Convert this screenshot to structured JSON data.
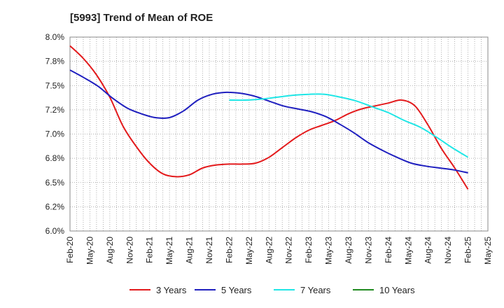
{
  "chart_data": {
    "type": "line",
    "title": "[5993]  Trend of Mean of ROE",
    "xlabel": "",
    "ylabel": "",
    "ylim": [
      6.0,
      8.0
    ],
    "y_ticks": [
      "6.0%",
      "6.2%",
      "6.5%",
      "6.8%",
      "7.0%",
      "7.2%",
      "7.5%",
      "7.8%",
      "8.0%"
    ],
    "x_ticks": [
      "Feb-20",
      "May-20",
      "Aug-20",
      "Nov-20",
      "Feb-21",
      "May-21",
      "Aug-21",
      "Nov-21",
      "Feb-22",
      "May-22",
      "Aug-22",
      "Nov-22",
      "Feb-23",
      "May-23",
      "Aug-23",
      "Nov-23",
      "Feb-24",
      "May-24",
      "Aug-24",
      "Nov-24",
      "Feb-25",
      "May-25"
    ],
    "grid": true,
    "legend_position": "bottom",
    "series": [
      {
        "name": "3 Years",
        "color": "#e31a1c",
        "values": [
          7.91,
          7.78,
          7.61,
          7.38,
          7.08,
          6.87,
          6.7,
          6.59,
          6.56,
          6.58,
          6.65,
          6.68,
          6.69,
          6.69,
          6.7,
          6.76,
          6.86,
          6.96,
          7.04,
          7.09,
          7.14,
          7.21,
          7.26,
          7.29,
          7.32,
          7.35,
          7.29,
          7.09,
          6.85,
          6.65,
          6.43
        ]
      },
      {
        "name": "5 Years",
        "color": "#1f1fbf",
        "values": [
          7.66,
          7.58,
          7.49,
          7.37,
          7.27,
          7.21,
          7.17,
          7.17,
          7.24,
          7.35,
          7.41,
          7.43,
          7.42,
          7.39,
          7.34,
          7.29,
          7.26,
          7.23,
          7.18,
          7.1,
          7.01,
          6.91,
          6.83,
          6.76,
          6.7,
          6.67,
          6.65,
          6.63,
          6.6
        ]
      },
      {
        "name": "7 Years",
        "color": "#1fe6e6",
        "values": [
          7.35,
          7.35,
          7.36,
          7.38,
          7.4,
          7.41,
          7.41,
          7.38,
          7.34,
          7.28,
          7.22,
          7.14,
          7.07,
          6.97,
          6.86,
          6.76
        ]
      },
      {
        "name": "10 Years",
        "color": "#1f8a1f",
        "values": []
      }
    ]
  }
}
